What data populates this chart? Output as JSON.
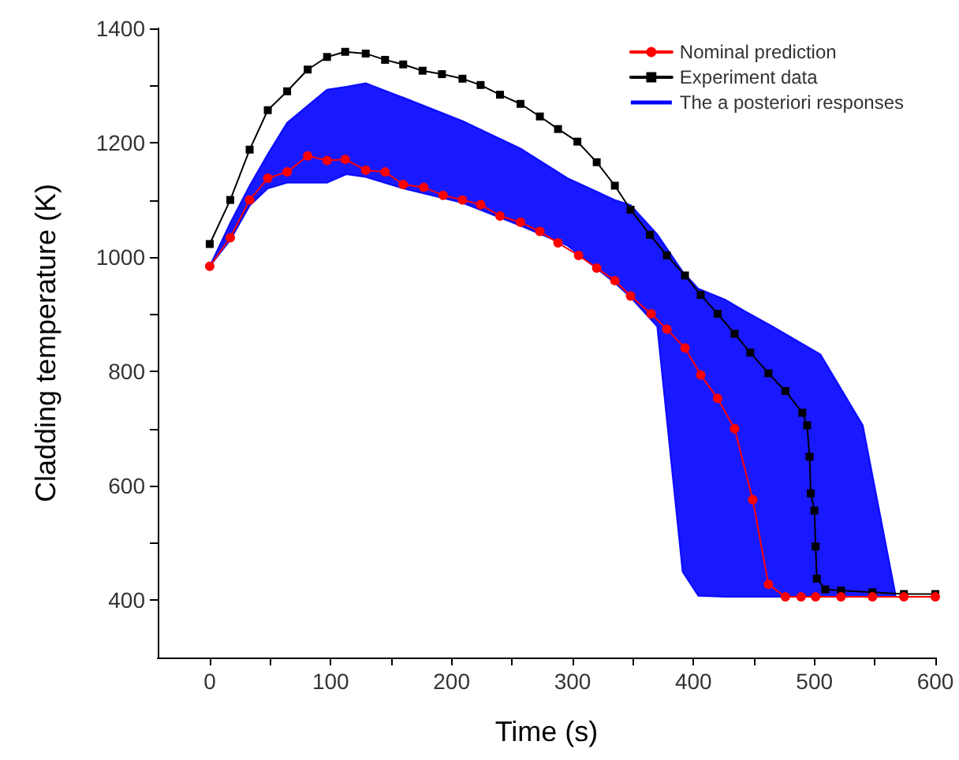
{
  "chart_data": {
    "type": "line",
    "xlabel": "Time (s)",
    "ylabel": "Cladding temperature (K)",
    "xlim": [
      -43,
      600
    ],
    "ylim": [
      300,
      1400
    ],
    "xticks": [
      0,
      {
        "value": 50,
        "label": null
      },
      100,
      {
        "value": 150,
        "label": null
      },
      200,
      {
        "value": 250,
        "label": null
      },
      300,
      {
        "value": 350,
        "label": null
      },
      400,
      {
        "value": 450,
        "label": null
      },
      500,
      {
        "value": 550,
        "label": null
      },
      600
    ],
    "yticks": [
      400,
      {
        "value": 500,
        "label": null
      },
      600,
      {
        "value": 700,
        "label": null
      },
      800,
      {
        "value": 900,
        "label": null
      },
      1000,
      {
        "value": 1100,
        "label": null
      },
      1200,
      {
        "value": 1300,
        "label": null
      },
      1400
    ],
    "grid": false,
    "legend": "top right",
    "line_style": "solid",
    "series": [
      {
        "name": "Nominal prediction",
        "color": "#ff0000",
        "marker": "circle",
        "x": [
          0,
          17,
          33,
          48,
          64,
          81,
          97,
          112,
          129,
          145,
          160,
          177,
          193,
          209,
          224,
          240,
          257,
          273,
          288,
          305,
          320,
          335,
          348,
          365,
          378,
          393,
          406,
          420,
          434,
          449,
          462,
          476,
          489,
          501,
          522,
          548,
          574,
          600
        ],
        "values": [
          984,
          1034,
          1100,
          1138,
          1149,
          1177,
          1169,
          1171,
          1152,
          1149,
          1127,
          1122,
          1108,
          1100,
          1092,
          1072,
          1061,
          1045,
          1025,
          1003,
          981,
          959,
          932,
          901,
          874,
          841,
          794,
          753,
          700,
          576,
          428,
          406,
          406,
          406,
          406,
          406,
          406,
          406
        ]
      },
      {
        "name": "Experiment data",
        "color": "#000000",
        "marker": "square",
        "x": [
          0,
          17,
          33,
          48,
          64,
          81,
          97,
          112,
          129,
          145,
          160,
          176,
          192,
          209,
          224,
          240,
          257,
          273,
          288,
          304,
          320,
          335,
          348,
          364,
          378,
          393,
          406,
          420,
          434,
          447,
          462,
          476,
          490,
          494,
          496,
          497,
          500,
          501,
          502,
          509,
          522,
          548,
          574,
          600
        ],
        "values": [
          1023,
          1100,
          1188,
          1257,
          1290,
          1328,
          1350,
          1359,
          1356,
          1345,
          1337,
          1326,
          1320,
          1312,
          1301,
          1284,
          1268,
          1246,
          1224,
          1202,
          1166,
          1125,
          1083,
          1039,
          1003,
          968,
          934,
          901,
          866,
          833,
          797,
          766,
          728,
          706,
          651,
          587,
          557,
          494,
          438,
          419,
          417,
          414,
          411,
          411
        ]
      },
      {
        "name": "The a posteriori responses",
        "type": "area",
        "color": "#0000ff",
        "x": [
          0,
          17,
          33,
          48,
          64,
          81,
          97,
          113,
          129,
          160,
          209,
          257,
          296,
          335,
          348,
          370,
          391,
          404,
          426,
          443,
          466,
          488,
          492,
          505,
          540,
          567
        ],
        "values": [
          null,
          null,
          null,
          null,
          null,
          null,
          null,
          null,
          null,
          null,
          null,
          null,
          null,
          null,
          null,
          null,
          null,
          null,
          null,
          null,
          null,
          null,
          null,
          null,
          null,
          null
        ],
        "lower": [
          984,
          1030,
          1090,
          1120,
          1130,
          1130,
          1130,
          1145,
          1140,
          1120,
          1095,
          1055,
          1020,
          955,
          930,
          879,
          450,
          408,
          406,
          406,
          406,
          406,
          406,
          406,
          406,
          406
        ],
        "upper": [
          984,
          1060,
          1125,
          1180,
          1235,
          1265,
          1293,
          1298,
          1304,
          1279,
          1238,
          1190,
          1138,
          1100,
          1091,
          1040,
          975,
          945,
          926,
          905,
          878,
          851,
          846,
          830,
          706,
          411
        ]
      }
    ]
  }
}
